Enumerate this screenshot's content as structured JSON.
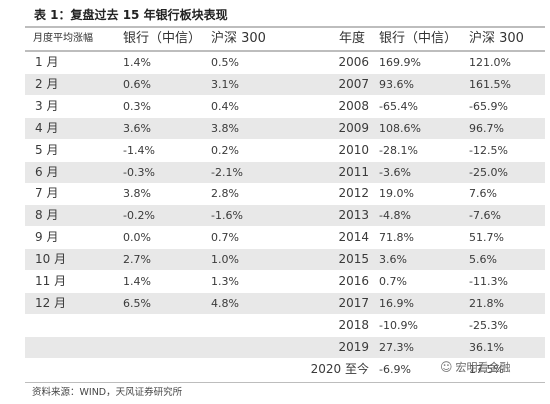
{
  "title": "表 1：复盘过去 15 年银行板块表现",
  "source": "资料来源：WIND，天风证券研究所",
  "watermark": "宏明看金融",
  "chart_data": [
    {
      "type": "table",
      "columns": [
        "月度平均涨幅",
        "银行（中信）",
        "沪深 300"
      ],
      "rows": [
        [
          "1 月",
          "1.4%",
          "0.5%"
        ],
        [
          "2 月",
          "0.6%",
          "3.1%"
        ],
        [
          "3 月",
          "0.3%",
          "0.4%"
        ],
        [
          "4 月",
          "3.6%",
          "3.8%"
        ],
        [
          "5 月",
          "-1.4%",
          "0.2%"
        ],
        [
          "6 月",
          "-0.3%",
          "-2.1%"
        ],
        [
          "7 月",
          "3.8%",
          "2.8%"
        ],
        [
          "8 月",
          "-0.2%",
          "-1.6%"
        ],
        [
          "9 月",
          "0.0%",
          "0.7%"
        ],
        [
          "10 月",
          "2.7%",
          "1.0%"
        ],
        [
          "11 月",
          "1.4%",
          "1.3%"
        ],
        [
          "12 月",
          "6.5%",
          "4.8%"
        ]
      ]
    },
    {
      "type": "table",
      "columns": [
        "年度",
        "银行（中信）",
        "沪深 300"
      ],
      "rows": [
        [
          "2006",
          "169.9%",
          "121.0%"
        ],
        [
          "2007",
          "93.6%",
          "161.5%"
        ],
        [
          "2008",
          "-65.4%",
          "-65.9%"
        ],
        [
          "2009",
          "108.6%",
          "96.7%"
        ],
        [
          "2010",
          "-28.1%",
          "-12.5%"
        ],
        [
          "2011",
          "-3.6%",
          "-25.0%"
        ],
        [
          "2012",
          "19.0%",
          "7.6%"
        ],
        [
          "2013",
          "-4.8%",
          "-7.6%"
        ],
        [
          "2014",
          "71.8%",
          "51.7%"
        ],
        [
          "2015",
          "3.6%",
          "5.6%"
        ],
        [
          "2016",
          "0.7%",
          "-11.3%"
        ],
        [
          "2017",
          "16.9%",
          "21.8%"
        ],
        [
          "2018",
          "-10.9%",
          "-25.3%"
        ],
        [
          "2019",
          "27.3%",
          "36.1%"
        ],
        [
          "2020 至今",
          "-6.9%",
          "17.5%"
        ]
      ]
    }
  ]
}
